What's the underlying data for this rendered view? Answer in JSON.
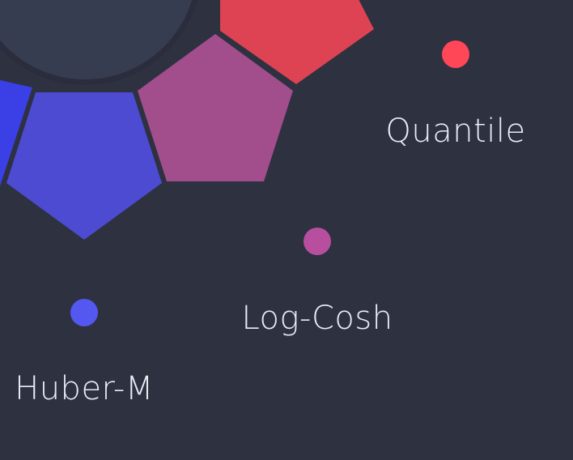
{
  "background_color": "#2e3140",
  "separator_color": "#2b2d3c",
  "hub_color": "#363d50",
  "segments": [
    {
      "name": "Quantile",
      "color": "#dd4352",
      "dot_color": "#ff4757"
    },
    {
      "name": "Log-Cosh",
      "color": "#a24d8c",
      "dot_color": "#b84f9e"
    },
    {
      "name": "Huber-M",
      "color": "#4c4bd2",
      "dot_color": "#5457f0"
    },
    {
      "name": "",
      "color": "#3a3fe6",
      "dot_color": ""
    }
  ]
}
